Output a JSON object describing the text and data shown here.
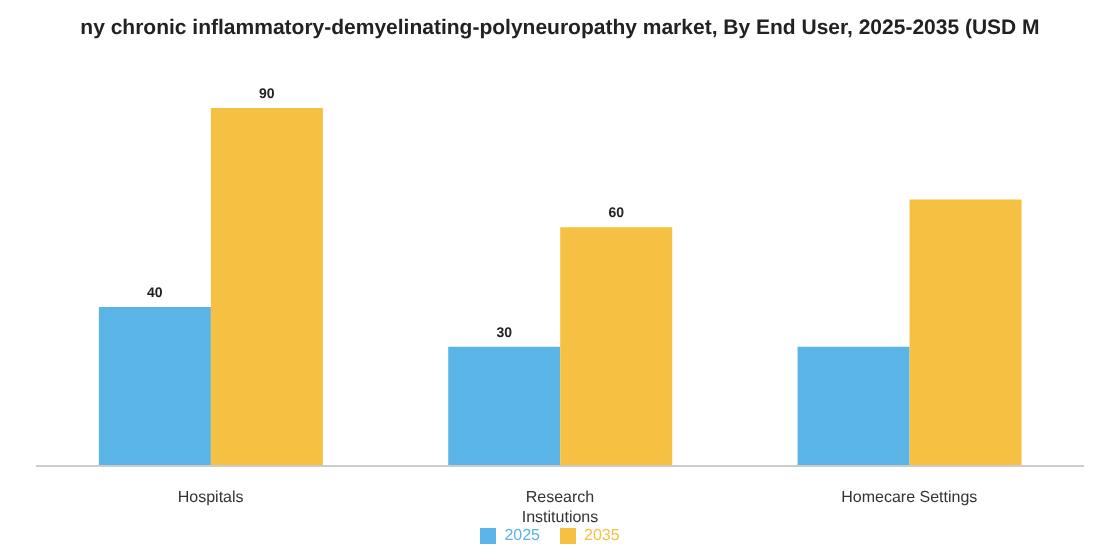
{
  "chart_data": {
    "type": "bar",
    "title": "ny chronic inflammatory-demyelinating-polyneuropathy market, By End User, 2025-2035 (USD M",
    "categories": [
      "Hospitals",
      "Research Institutions",
      "Homecare Settings"
    ],
    "series": [
      {
        "name": "2025",
        "color": "#5ab4e5",
        "values": [
          40,
          30,
          30
        ],
        "value_labels": [
          "40",
          "30",
          null
        ]
      },
      {
        "name": "2035",
        "color": "#f6c143",
        "values": [
          90,
          60,
          67
        ],
        "value_labels": [
          "90",
          "60",
          null
        ]
      }
    ],
    "legend": "bottom",
    "grid": false
  }
}
